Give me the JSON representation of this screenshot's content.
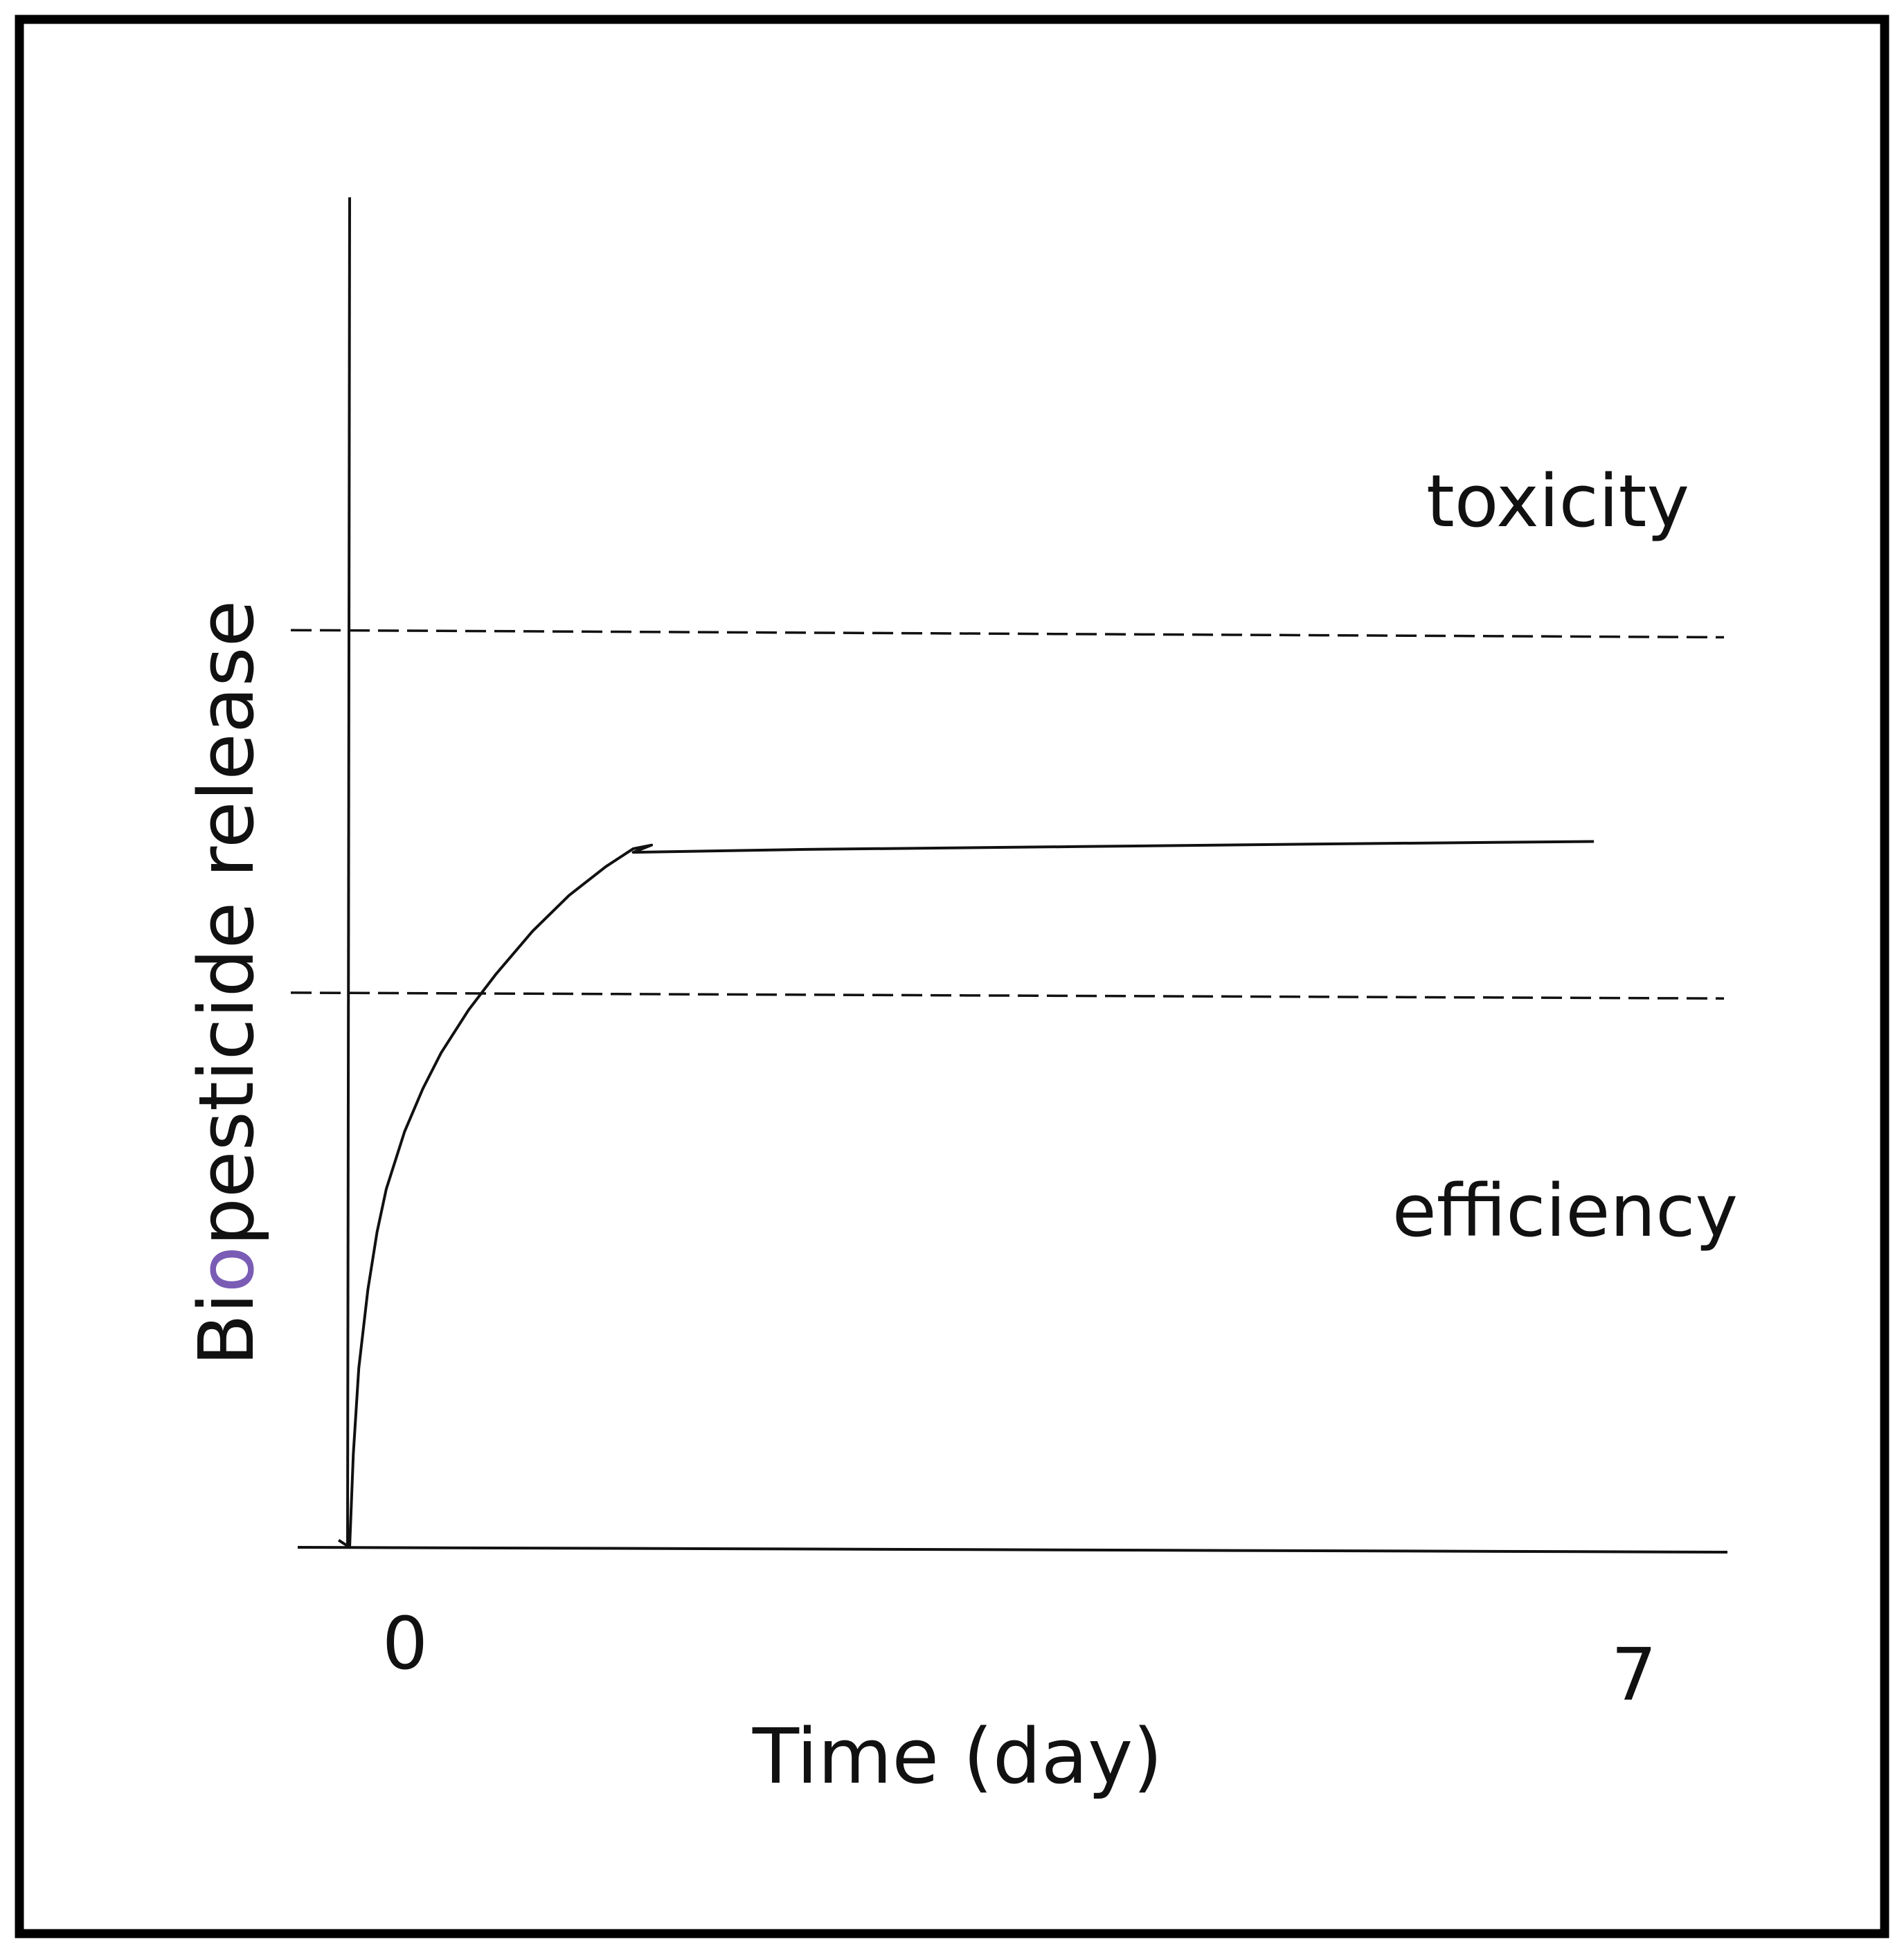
{
  "chart_data": {
    "type": "line",
    "title": "",
    "xlabel": "Time (day)",
    "ylabel": {
      "parts": [
        {
          "text": "Bi",
          "color": "#111111"
        },
        {
          "text": "o",
          "color": "#7a5cb5"
        },
        {
          "text": "pesticide release",
          "color": "#111111"
        }
      ]
    },
    "x_ticks": [
      {
        "value": 0,
        "label": "0"
      },
      {
        "value": 7,
        "label": "7"
      }
    ],
    "xlim": [
      -0.35,
      7.5
    ],
    "ylim": [
      0,
      10
    ],
    "grid": false,
    "series": [
      {
        "x": [
          -0.06,
          -0.06,
          0.0,
          0.02,
          0.05,
          0.1,
          0.15,
          0.2,
          0.3,
          0.4,
          0.5,
          0.65,
          0.8,
          1.0,
          1.2,
          1.4,
          1.55,
          1.65,
          1.55,
          2.5,
          4.0,
          5.5,
          6.8
        ],
        "y": [
          0.1,
          0.1,
          0.0,
          1.3,
          2.5,
          3.6,
          4.4,
          5.0,
          5.8,
          6.4,
          6.9,
          7.5,
          8.0,
          8.6,
          9.1,
          9.5,
          9.75,
          9.8,
          9.7,
          9.74,
          9.78,
          9.82,
          9.85
        ]
      }
    ],
    "thresholds": [
      {
        "label": "toxicity",
        "y": [
          12.8,
          12.7
        ]
      },
      {
        "label": "efficiency",
        "y": [
          7.74,
          7.66
        ]
      }
    ],
    "colors": {
      "line": "#111111",
      "axes": "#111111",
      "frame": "#000000"
    }
  }
}
